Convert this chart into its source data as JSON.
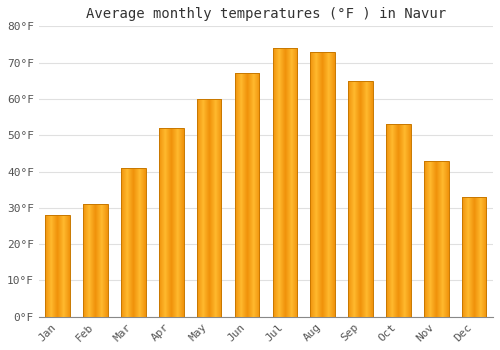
{
  "title": "Average monthly temperatures (°F ) in Navur",
  "months": [
    "Jan",
    "Feb",
    "Mar",
    "Apr",
    "May",
    "Jun",
    "Jul",
    "Aug",
    "Sep",
    "Oct",
    "Nov",
    "Dec"
  ],
  "values": [
    28,
    31,
    41,
    52,
    60,
    67,
    74,
    73,
    65,
    53,
    43,
    33
  ],
  "bar_color_light": "#FFB92E",
  "bar_color_dark": "#F0920A",
  "bar_edge_color": "#C87800",
  "ylim": [
    0,
    80
  ],
  "yticks": [
    0,
    10,
    20,
    30,
    40,
    50,
    60,
    70,
    80
  ],
  "ytick_labels": [
    "0°F",
    "10°F",
    "20°F",
    "30°F",
    "40°F",
    "50°F",
    "60°F",
    "70°F",
    "80°F"
  ],
  "background_color": "#ffffff",
  "grid_color": "#e0e0e0",
  "title_fontsize": 10,
  "tick_fontsize": 8,
  "font_family": "monospace"
}
